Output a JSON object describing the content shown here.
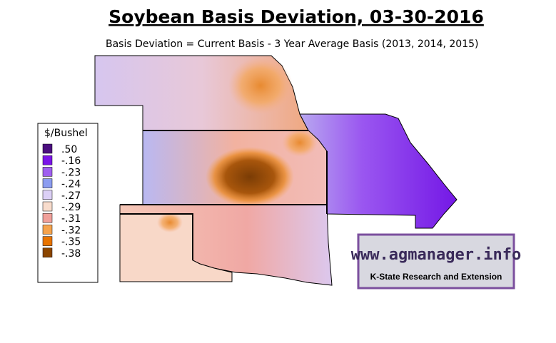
{
  "header": {
    "title": "Soybean Basis Deviation, 03-30-2016",
    "subtitle": "Basis Deviation = Current Basis - 3 Year Average Basis (2013, 2014, 2015)"
  },
  "legend": {
    "title": "$/Bushel",
    "items": [
      {
        "label": ".50",
        "color": "#4b0f7f"
      },
      {
        "label": "-.16",
        "color": "#7b14e8"
      },
      {
        "label": "-.23",
        "color": "#a060f0"
      },
      {
        "label": "-.24",
        "color": "#8c9cf0"
      },
      {
        "label": "-.27",
        "color": "#dcd0f6"
      },
      {
        "label": "-.29",
        "color": "#f8dccc"
      },
      {
        "label": "-.31",
        "color": "#f0a09a"
      },
      {
        "label": "-.32",
        "color": "#f5a34d"
      },
      {
        "label": "-.35",
        "color": "#e87400"
      },
      {
        "label": "-.38",
        "color": "#8b4500"
      }
    ]
  },
  "logo": {
    "url": "www.agmanager.info",
    "tagline": "K-State Research and Extension"
  }
}
